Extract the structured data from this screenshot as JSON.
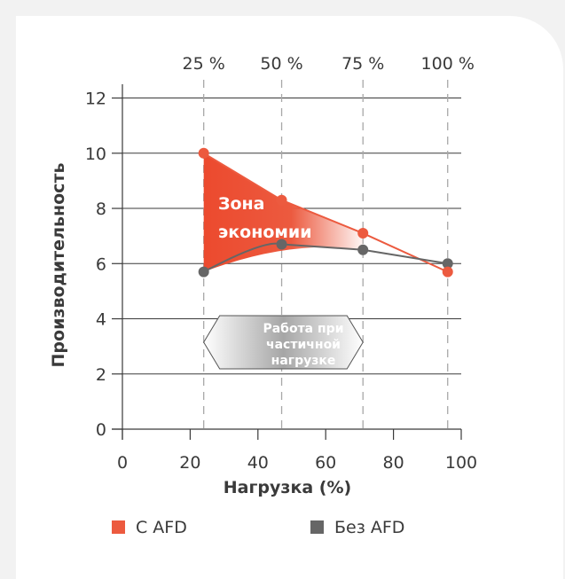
{
  "chart_data": {
    "type": "line",
    "xlabel": "Нагрузка (%)",
    "ylabel": "Производительность",
    "xlim": [
      0,
      100
    ],
    "ylim": [
      0,
      12.5
    ],
    "x_ticks": [
      "0",
      "20",
      "40",
      "60",
      "80",
      "100"
    ],
    "y_ticks": [
      "0",
      "2",
      "4",
      "6",
      "8",
      "10",
      "12"
    ],
    "top_ticks": [
      "25 %",
      "50 %",
      "75 %",
      "100 %"
    ],
    "series": [
      {
        "name": "С AFD",
        "color": "#ec5a3f",
        "x": [
          24,
          47,
          71,
          96
        ],
        "y": [
          10.0,
          8.3,
          7.1,
          5.7
        ]
      },
      {
        "name": "Без AFD",
        "color": "#666666",
        "x": [
          24,
          47,
          71,
          96
        ],
        "y": [
          5.7,
          6.7,
          6.5,
          6.0
        ]
      }
    ],
    "annotations": {
      "zone_line1": "Зона",
      "zone_line2": "экономии",
      "partial_line1": "Работа при",
      "partial_line2": "частичной",
      "partial_line3": "нагрузке"
    },
    "legend": {
      "position": "bottom"
    },
    "grid": true
  }
}
